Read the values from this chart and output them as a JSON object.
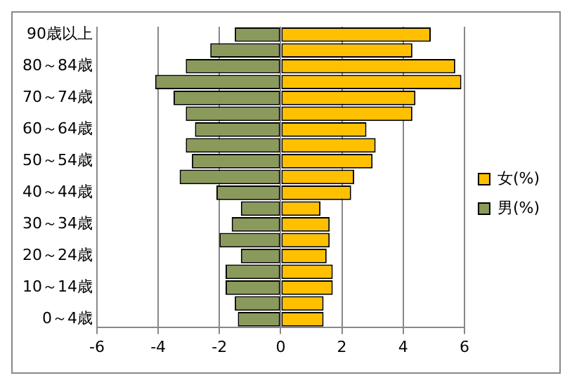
{
  "chart_data": {
    "type": "bar",
    "orientation": "horizontal",
    "stacked": true,
    "categories": [
      "90歳以上",
      null,
      "80～84歳",
      null,
      "70～74歳",
      null,
      "60～64歳",
      null,
      "50～54歳",
      null,
      "40～44歳",
      null,
      "30～34歳",
      null,
      "20～24歳",
      null,
      "10～14歳",
      null,
      "0～4歳"
    ],
    "series": [
      {
        "name": "女(%)",
        "color": "#ffc000",
        "values": [
          4.9,
          4.3,
          5.7,
          5.9,
          4.4,
          4.3,
          2.8,
          3.1,
          3.0,
          2.4,
          2.3,
          1.3,
          1.6,
          1.6,
          1.5,
          1.7,
          1.7,
          1.4,
          1.4
        ]
      },
      {
        "name": "男(%)",
        "color": "#8a9a5b",
        "values": [
          -1.5,
          -2.3,
          -3.1,
          -4.1,
          -3.5,
          -3.1,
          -2.8,
          -3.1,
          -2.9,
          -3.3,
          -2.1,
          -1.3,
          -1.6,
          -2.0,
          -1.3,
          -1.8,
          -1.8,
          -1.5,
          -1.4
        ]
      }
    ],
    "xlim": [
      -6,
      6
    ],
    "xticks": [
      -6,
      -4,
      -2,
      0,
      2,
      4,
      6
    ],
    "grid": "x",
    "legend": "right"
  }
}
